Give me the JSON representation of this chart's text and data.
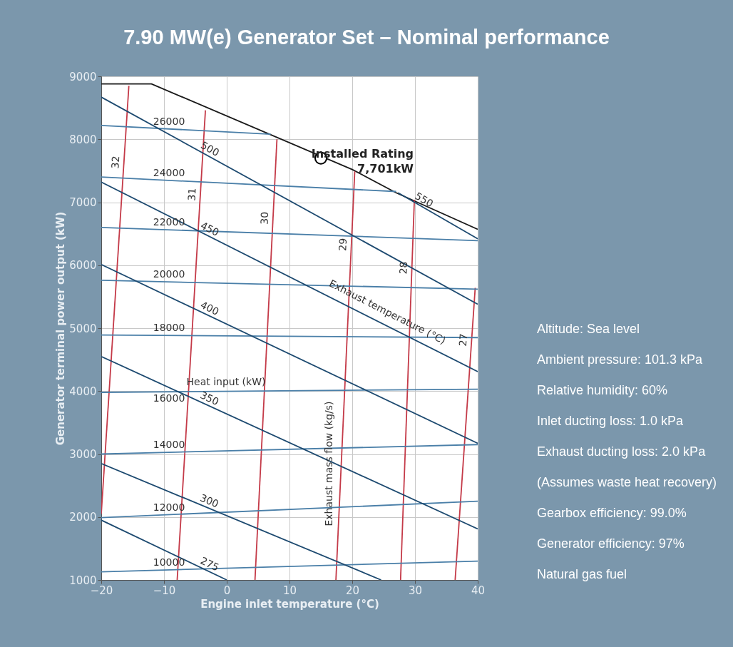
{
  "chart_data": {
    "type": "line",
    "title": "7.90 MW(e) Generator Set – Nominal performance",
    "xlabel": "Engine inlet temperature (°C)",
    "ylabel": "Generator terminal power output (kW)",
    "xlim": [
      -20,
      40
    ],
    "ylim": [
      1000,
      9000
    ],
    "xticks": [
      -20,
      -10,
      0,
      10,
      20,
      30,
      40
    ],
    "yticks": [
      1000,
      2000,
      3000,
      4000,
      5000,
      6000,
      7000,
      8000,
      9000
    ],
    "grid": true,
    "legend": false,
    "series": [
      {
        "color": "#1a1a1a",
        "x": [
          -20,
          -12,
          20,
          27,
          40
        ],
        "values": [
          8880,
          8880,
          7520,
          7150,
          6570
        ]
      },
      {
        "name": "32",
        "color": "#c43a48",
        "x": [
          -20,
          -15.6
        ],
        "values": [
          2050,
          8850
        ]
      },
      {
        "name": "31",
        "color": "#c43a48",
        "x": [
          -7.9,
          -3.4
        ],
        "values": [
          1000,
          8460
        ]
      },
      {
        "name": "30",
        "color": "#c43a48",
        "x": [
          4.5,
          8
        ],
        "values": [
          1000,
          8000
        ]
      },
      {
        "name": "29",
        "color": "#c43a48",
        "x": [
          17.4,
          20.4
        ],
        "values": [
          1000,
          7490
        ]
      },
      {
        "name": "28",
        "color": "#c43a48",
        "x": [
          27.7,
          29.9
        ],
        "values": [
          1000,
          7040
        ]
      },
      {
        "name": "27",
        "color": "#c43a48",
        "x": [
          36.4,
          39.6
        ],
        "values": [
          1000,
          5640
        ]
      },
      {
        "name": "26000",
        "color": "#4a7fa8",
        "x": [
          -20,
          7
        ],
        "values": [
          8220,
          8080
        ]
      },
      {
        "name": "24000",
        "color": "#4a7fa8",
        "x": [
          -20,
          27
        ],
        "values": [
          7400,
          7170
        ]
      },
      {
        "name": "22000",
        "color": "#4a7fa8",
        "x": [
          -20,
          40
        ],
        "values": [
          6600,
          6390
        ]
      },
      {
        "name": "20000",
        "color": "#4a7fa8",
        "x": [
          -20,
          40
        ],
        "values": [
          5760,
          5620
        ]
      },
      {
        "name": "18000",
        "color": "#4a7fa8",
        "x": [
          -20,
          40
        ],
        "values": [
          4890,
          4850
        ]
      },
      {
        "name": "16000",
        "color": "#4a7fa8",
        "x": [
          -20,
          40
        ],
        "values": [
          3980,
          4030
        ]
      },
      {
        "name": "14000",
        "color": "#4a7fa8",
        "x": [
          -20,
          40
        ],
        "values": [
          3000,
          3150
        ]
      },
      {
        "name": "12000",
        "color": "#4a7fa8",
        "x": [
          -20,
          40
        ],
        "values": [
          1990,
          2250
        ]
      },
      {
        "name": "10000",
        "color": "#4a7fa8",
        "x": [
          -20,
          40
        ],
        "values": [
          1130,
          1300
        ]
      },
      {
        "name": "550",
        "color": "#1d4a70",
        "x": [
          27.3,
          40
        ],
        "values": [
          7150,
          6420
        ]
      },
      {
        "name": "500",
        "color": "#1d4a70",
        "x": [
          -20,
          40
        ],
        "values": [
          8670,
          5380
        ]
      },
      {
        "name": "450",
        "color": "#1d4a70",
        "x": [
          -20,
          40
        ],
        "values": [
          7320,
          4310
        ]
      },
      {
        "name": "400",
        "color": "#1d4a70",
        "x": [
          -20,
          40
        ],
        "values": [
          6010,
          3170
        ]
      },
      {
        "name": "350",
        "color": "#1d4a70",
        "x": [
          -20,
          40
        ],
        "values": [
          4550,
          1810
        ]
      },
      {
        "name": "300",
        "color": "#1d4a70",
        "x": [
          -20,
          24.6
        ],
        "values": [
          2850,
          1000
        ]
      },
      {
        "name": "275",
        "color": "#1d4a70",
        "x": [
          -20,
          0
        ],
        "values": [
          1950,
          1000
        ]
      },
      {
        "type": "scatter",
        "marker": "circle",
        "color": "#000000",
        "x": [
          15
        ],
        "values": [
          7701
        ]
      }
    ],
    "annotations": [
      {
        "text": "Installed Rating\n7,701kW",
        "x": 15,
        "y": 7701
      },
      {
        "text": "Heat input (kW)"
      },
      {
        "text": "Exhaust mass flow (kg/s)"
      },
      {
        "text": "Exhaust temperature (°C)"
      },
      "Altitude: Sea level",
      "Ambient pressure: 101.3 kPa",
      "Relative humidity: 60%",
      "Inlet ducting loss: 1.0 kPa",
      "Exhaust ducting loss: 2.0 kPa",
      "(Assumes waste heat recovery)",
      "Gearbox efficiency: 99.0%",
      "Generator efficiency: 97%",
      "Natural gas fuel"
    ]
  }
}
